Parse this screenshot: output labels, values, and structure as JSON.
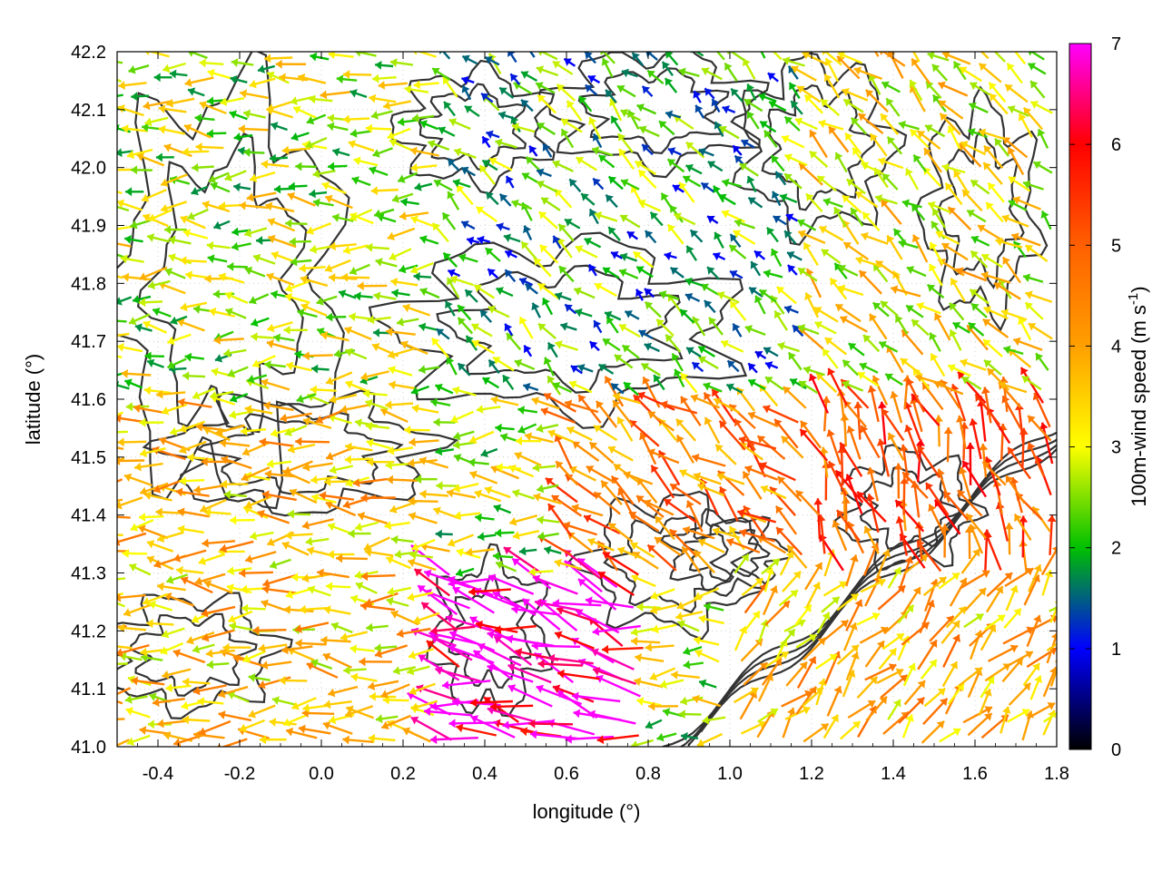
{
  "chart_data": {
    "type": "vector-field",
    "xlabel": "longitude (°)",
    "ylabel": "latitude (°)",
    "colorbar_label": "100m-wind speed (m s-1)",
    "colorbar_label_parts": {
      "main": "100m-wind speed (m s",
      "sup": "-1",
      "close": ")"
    },
    "xlim": [
      -0.5,
      1.8
    ],
    "ylim": [
      41.0,
      42.2
    ],
    "x_ticks": [
      -0.4,
      -0.2,
      0.0,
      0.2,
      0.4,
      0.6,
      0.8,
      1.0,
      1.2,
      1.4,
      1.6,
      1.8
    ],
    "x_tick_labels": [
      "-0.4",
      "-0.2",
      "0.0",
      "0.2",
      "0.4",
      "0.6",
      "0.8",
      "1.0",
      "1.2",
      "1.4",
      "1.6",
      "1.8"
    ],
    "y_ticks": [
      41.0,
      41.1,
      41.2,
      41.3,
      41.4,
      41.5,
      41.6,
      41.7,
      41.8,
      41.9,
      42.0,
      42.1,
      42.2
    ],
    "y_tick_labels": [
      "41.0",
      "41.1",
      "41.2",
      "41.3",
      "41.4",
      "41.5",
      "41.6",
      "41.7",
      "41.8",
      "41.9",
      "42.0",
      "42.1",
      "42.2"
    ],
    "colorbar": {
      "range": [
        0,
        7
      ],
      "ticks": [
        0,
        1,
        2,
        3,
        4,
        5,
        6,
        7
      ],
      "tick_labels": [
        "0",
        "1",
        "2",
        "3",
        "4",
        "5",
        "6",
        "7"
      ],
      "colors": [
        "#000000",
        "#0000ff",
        "#00c000",
        "#ffff00",
        "#ffa000",
        "#ff6000",
        "#ff0000",
        "#ff00ff"
      ]
    },
    "grid": "dotted",
    "wind_regions": [
      {
        "region": "northwest",
        "lon": [
          -0.5,
          0.3
        ],
        "lat": [
          41.6,
          42.2
        ],
        "speed": 2.8,
        "direction": "west"
      },
      {
        "region": "north-central",
        "lon": [
          0.3,
          1.2
        ],
        "lat": [
          41.6,
          42.2
        ],
        "speed": 2.0,
        "direction": "northwest"
      },
      {
        "region": "northeast",
        "lon": [
          1.2,
          1.8
        ],
        "lat": [
          41.6,
          42.2
        ],
        "speed": 3.2,
        "direction": "northwest"
      },
      {
        "region": "west",
        "lon": [
          -0.5,
          0.3
        ],
        "lat": [
          41.0,
          41.6
        ],
        "speed": 3.6,
        "direction": "west"
      },
      {
        "region": "southwest-core",
        "lon": [
          0.3,
          0.8
        ],
        "lat": [
          41.0,
          41.3
        ],
        "speed": 6.8,
        "direction": "west-northwest"
      },
      {
        "region": "central",
        "lon": [
          0.6,
          1.2
        ],
        "lat": [
          41.3,
          41.6
        ],
        "speed": 4.5,
        "direction": "northwest"
      },
      {
        "region": "east",
        "lon": [
          1.2,
          1.8
        ],
        "lat": [
          41.3,
          41.6
        ],
        "speed": 5.0,
        "direction": "north-northwest"
      },
      {
        "region": "southeast",
        "lon": [
          1.0,
          1.8
        ],
        "lat": [
          41.0,
          41.3
        ],
        "speed": 3.8,
        "direction": "northeast"
      }
    ]
  }
}
